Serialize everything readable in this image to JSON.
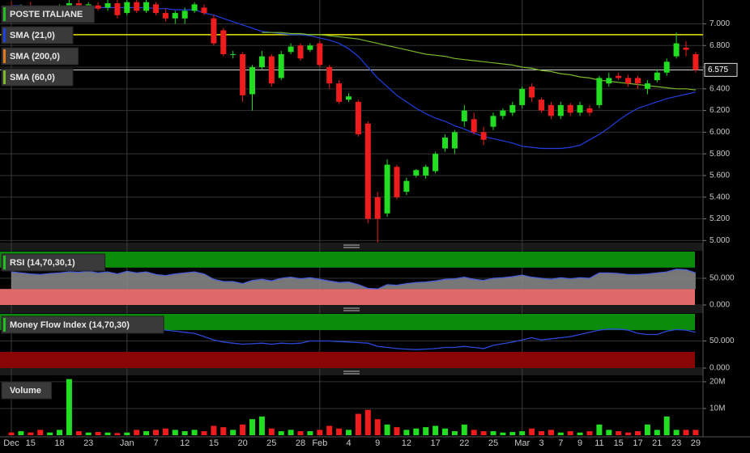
{
  "chart_data": [
    {
      "type": "candlestick",
      "title": "POSTE ITALIANE",
      "up_color": "#22dd22",
      "down_color": "#ee1c1c",
      "open": [
        7.15,
        7.12,
        7.16,
        7.12,
        7.08,
        7.13,
        7.16,
        7.19,
        7.16,
        7.17,
        7.15,
        7.19,
        7.1,
        7.2,
        7.12,
        7.18,
        7.1,
        7.05,
        7.05,
        7.12,
        7.15,
        7.05,
        6.94,
        6.72,
        6.72,
        6.35,
        6.6,
        6.7,
        6.5,
        6.74,
        6.8,
        6.76,
        6.82,
        6.6,
        6.45,
        6.3,
        6.28,
        6.08,
        5.4,
        5.25,
        5.68,
        5.45,
        5.6,
        5.6,
        5.64,
        5.85,
        5.85,
        6.1,
        6.12,
        6.0,
        6.05,
        6.15,
        6.18,
        6.25,
        6.42,
        6.3,
        6.25,
        6.15,
        6.25,
        6.18,
        6.22,
        6.25,
        6.45,
        6.52,
        6.5,
        6.5,
        6.4,
        6.48,
        6.55,
        6.7,
        6.78,
        6.72
      ],
      "high": [
        7.2,
        7.18,
        7.2,
        7.17,
        7.15,
        7.18,
        7.22,
        7.22,
        7.2,
        7.2,
        7.22,
        7.22,
        7.22,
        7.22,
        7.22,
        7.2,
        7.14,
        7.12,
        7.15,
        7.2,
        7.18,
        7.08,
        6.96,
        6.75,
        6.74,
        6.62,
        6.75,
        6.72,
        6.75,
        6.82,
        6.82,
        6.82,
        6.84,
        6.62,
        6.48,
        6.36,
        6.3,
        6.1,
        5.45,
        5.75,
        5.7,
        5.58,
        5.66,
        5.7,
        5.82,
        5.98,
        6.02,
        6.25,
        6.18,
        6.05,
        6.18,
        6.22,
        6.28,
        6.42,
        6.45,
        6.32,
        6.28,
        6.28,
        6.27,
        6.28,
        6.25,
        6.52,
        6.55,
        6.55,
        6.53,
        6.52,
        6.48,
        6.58,
        6.68,
        6.92,
        6.84,
        6.74
      ],
      "low": [
        7.1,
        7.08,
        7.1,
        7.05,
        7.05,
        7.1,
        7.12,
        7.14,
        7.1,
        7.12,
        7.12,
        7.05,
        7.08,
        7.1,
        7.1,
        7.08,
        7.02,
        7.0,
        7.0,
        7.1,
        7.08,
        6.8,
        6.7,
        6.68,
        6.28,
        6.2,
        6.58,
        6.42,
        6.48,
        6.72,
        6.66,
        6.74,
        6.6,
        6.4,
        6.26,
        6.28,
        5.96,
        5.16,
        4.98,
        5.22,
        5.38,
        5.42,
        5.58,
        5.57,
        5.62,
        5.82,
        5.8,
        6.05,
        5.98,
        5.88,
        6.02,
        6.12,
        6.15,
        6.22,
        6.28,
        6.18,
        6.12,
        6.12,
        6.15,
        6.15,
        6.15,
        6.22,
        6.42,
        6.48,
        6.42,
        6.4,
        6.35,
        6.46,
        6.52,
        6.68,
        6.7,
        6.55
      ],
      "close": [
        7.12,
        7.16,
        7.12,
        7.08,
        7.13,
        7.16,
        7.19,
        7.16,
        7.18,
        7.14,
        7.19,
        7.08,
        7.2,
        7.12,
        7.2,
        7.1,
        7.05,
        7.1,
        7.12,
        7.18,
        7.1,
        6.82,
        6.72,
        6.72,
        6.34,
        6.6,
        6.7,
        6.45,
        6.72,
        6.79,
        6.68,
        6.8,
        6.62,
        6.45,
        6.28,
        6.33,
        5.98,
        5.2,
        5.2,
        5.7,
        5.4,
        5.55,
        5.65,
        5.68,
        5.8,
        5.95,
        6.0,
        6.2,
        6.0,
        5.93,
        6.15,
        6.2,
        6.25,
        6.4,
        6.32,
        6.2,
        6.15,
        6.25,
        6.18,
        6.25,
        6.18,
        6.5,
        6.5,
        6.5,
        6.45,
        6.45,
        6.45,
        6.55,
        6.65,
        6.82,
        6.76,
        6.575
      ],
      "overlays": [
        {
          "name": "SMA (21,0)",
          "color": "#1f3fe0",
          "values": [
            7.17,
            7.17,
            7.16,
            7.16,
            7.15,
            7.15,
            7.15,
            7.15,
            7.15,
            7.15,
            7.15,
            7.15,
            7.15,
            7.15,
            7.15,
            7.14,
            7.14,
            7.13,
            7.13,
            7.13,
            7.1,
            7.08,
            7.05,
            7.02,
            6.99,
            6.96,
            6.93,
            6.92,
            6.91,
            6.9,
            6.9,
            6.89,
            6.87,
            6.85,
            6.82,
            6.77,
            6.7,
            6.6,
            6.5,
            6.42,
            6.34,
            6.28,
            6.22,
            6.17,
            6.13,
            6.1,
            6.06,
            6.03,
            5.99,
            5.96,
            5.94,
            5.92,
            5.9,
            5.87,
            5.86,
            5.85,
            5.85,
            5.85,
            5.86,
            5.88,
            5.93,
            5.98,
            6.04,
            6.11,
            6.17,
            6.22,
            6.25,
            6.28,
            6.31,
            6.33,
            6.35,
            6.37
          ]
        },
        {
          "name": "SMA (200,0)",
          "color": "#e07a1a",
          "values": [
            null,
            null,
            null,
            null,
            null,
            null,
            null,
            null,
            null,
            null,
            null,
            null,
            null,
            null,
            null,
            null,
            null,
            null,
            null,
            null,
            null,
            null,
            null,
            null,
            null,
            null,
            null,
            null,
            null,
            null,
            null,
            null,
            null,
            null,
            null,
            null,
            null,
            null,
            null,
            null,
            null,
            null,
            null,
            null,
            null,
            null,
            null,
            null,
            null,
            null,
            null,
            null,
            null,
            null,
            null,
            null,
            null,
            null,
            null,
            null,
            null,
            null,
            null,
            null,
            null,
            null,
            null,
            null,
            null,
            null,
            null,
            null
          ]
        },
        {
          "name": "SMA (60,0)",
          "color": "#7ab82a",
          "values": [
            null,
            null,
            null,
            null,
            null,
            null,
            null,
            null,
            null,
            null,
            null,
            null,
            null,
            null,
            null,
            null,
            null,
            null,
            null,
            null,
            null,
            null,
            null,
            null,
            null,
            null,
            6.92,
            6.92,
            6.92,
            6.91,
            6.91,
            6.9,
            6.9,
            6.89,
            6.88,
            6.87,
            6.86,
            6.84,
            6.82,
            6.8,
            6.78,
            6.76,
            6.74,
            6.72,
            6.71,
            6.7,
            6.68,
            6.67,
            6.66,
            6.65,
            6.64,
            6.63,
            6.62,
            6.6,
            6.59,
            6.57,
            6.56,
            6.54,
            6.53,
            6.51,
            6.5,
            6.48,
            6.47,
            6.46,
            6.45,
            6.44,
            6.43,
            6.42,
            6.41,
            6.4,
            6.4,
            6.39
          ]
        }
      ],
      "level_lines": [
        {
          "value": 6.9,
          "color": "#e8e800"
        }
      ],
      "last_price": 6.575,
      "ylim": [
        4.98,
        7.22
      ],
      "yticks": [
        {
          "value": 5.0,
          "label": "5.000"
        },
        {
          "value": 5.2,
          "label": "5.200"
        },
        {
          "value": 5.4,
          "label": "5.400"
        },
        {
          "value": 5.6,
          "label": "5.600"
        },
        {
          "value": 5.8,
          "label": "5.800"
        },
        {
          "value": 6.0,
          "label": "6.000"
        },
        {
          "value": 6.2,
          "label": "6.200"
        },
        {
          "value": 6.4,
          "label": "6.400"
        },
        {
          "value": 6.6,
          "label": "6.600"
        },
        {
          "value": 6.8,
          "label": "6.800"
        },
        {
          "value": 7.0,
          "label": "7.000"
        }
      ],
      "grid": true
    },
    {
      "type": "line",
      "title": "RSI (14,70,30,1)",
      "series": [
        {
          "color": "#4a5fd8",
          "fill": "#8c8c8c",
          "values": [
            62,
            60,
            58,
            57,
            59,
            60,
            62,
            61,
            63,
            60,
            62,
            58,
            63,
            60,
            62,
            57,
            55,
            58,
            60,
            62,
            58,
            48,
            44,
            44,
            40,
            46,
            48,
            45,
            50,
            52,
            49,
            51,
            48,
            45,
            42,
            43,
            38,
            31,
            30,
            38,
            37,
            40,
            42,
            43,
            45,
            48,
            49,
            52,
            48,
            46,
            50,
            51,
            53,
            56,
            52,
            50,
            48,
            51,
            49,
            51,
            50,
            60,
            60,
            59,
            57,
            57,
            58,
            60,
            62,
            67,
            66,
            60
          ]
        }
      ],
      "bands": [
        {
          "from": 70,
          "to": 100,
          "color": "#0b8c0b"
        },
        {
          "from": 0,
          "to": 30,
          "color": "#e06a6a"
        }
      ],
      "ylim": [
        0,
        100
      ],
      "yticks": [
        {
          "value": 0,
          "label": "0.000"
        },
        {
          "value": 50,
          "label": "50.000"
        }
      ]
    },
    {
      "type": "line",
      "title": "Money Flow Index (14,70,30)",
      "series": [
        {
          "color": "#2a48d8",
          "values": [
            78,
            78,
            77,
            76,
            77,
            78,
            78,
            77,
            78,
            77,
            78,
            77,
            78,
            76,
            75,
            72,
            70,
            68,
            66,
            64,
            58,
            52,
            48,
            46,
            44,
            45,
            46,
            44,
            46,
            45,
            46,
            50,
            50,
            50,
            49,
            48,
            47,
            46,
            40,
            38,
            36,
            35,
            34,
            35,
            36,
            38,
            38,
            40,
            38,
            36,
            42,
            45,
            48,
            52,
            56,
            52,
            54,
            56,
            58,
            62,
            66,
            70,
            72,
            72,
            70,
            64,
            62,
            62,
            68,
            71,
            70,
            66
          ]
        }
      ],
      "bands": [
        {
          "from": 70,
          "to": 100,
          "color": "#0b8c0b"
        },
        {
          "from": 0,
          "to": 30,
          "color": "#8a0606"
        }
      ],
      "ylim": [
        0,
        100
      ],
      "yticks": [
        {
          "value": 0,
          "label": "0.000"
        },
        {
          "value": 50,
          "label": "50.000"
        }
      ]
    },
    {
      "type": "bar",
      "title": "Volume",
      "categories": [
        "Dec",
        null,
        "15",
        null,
        null,
        "18",
        null,
        null,
        "23",
        null,
        null,
        null,
        "Jan",
        null,
        null,
        "7",
        null,
        null,
        "12",
        null,
        null,
        "15",
        null,
        null,
        "20",
        null,
        null,
        "25",
        null,
        null,
        "28",
        null,
        "Feb",
        null,
        null,
        "4",
        null,
        null,
        "9",
        null,
        null,
        "12",
        null,
        null,
        "17",
        null,
        null,
        "22",
        null,
        null,
        "25",
        null,
        null,
        "Mar",
        null,
        "3",
        null,
        "7",
        null,
        "9",
        null,
        "11",
        null,
        "15",
        null,
        "17",
        null,
        "21",
        null,
        "23",
        null,
        "29"
      ],
      "values": [
        1,
        1.5,
        1,
        2,
        1,
        2,
        21,
        1.5,
        1,
        1.2,
        1,
        0.8,
        1,
        2,
        1.5,
        2,
        2.5,
        2,
        1.5,
        2,
        1.5,
        3.5,
        3,
        2,
        4,
        6,
        7,
        2.5,
        1.5,
        2,
        1.5,
        1.5,
        2,
        3.5,
        2.5,
        2,
        8,
        9.5,
        6,
        4,
        3,
        2,
        2.5,
        3,
        3.5,
        2.5,
        1.5,
        4,
        2,
        1.5,
        1.5,
        1,
        1.2,
        1.5,
        2.5,
        1.5,
        2,
        1,
        1.5,
        1,
        1.5,
        4,
        2,
        1.5,
        1,
        1.5,
        4,
        2,
        7,
        2,
        2,
        2
      ],
      "ylim": [
        0,
        22.1
      ],
      "yticks": [
        {
          "value": 10,
          "label": "10M"
        },
        {
          "value": 20,
          "label": "20M"
        }
      ]
    }
  ]
}
